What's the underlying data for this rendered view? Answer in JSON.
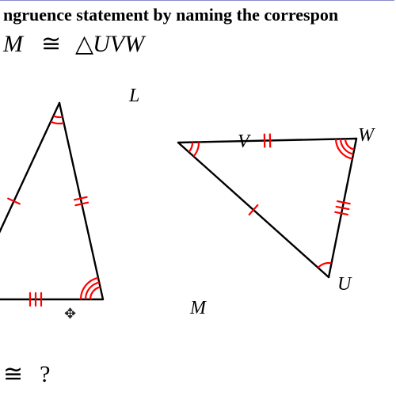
{
  "header": {
    "line1": "ngruence statement by naming the correspon"
  },
  "statement": {
    "lhs_tri": "△",
    "lhs_name_tail": "M",
    "cong": "≅",
    "rhs_tri": "△",
    "rhs_name": "UVW"
  },
  "question": {
    "cong": "≅",
    "qmark": "?"
  },
  "labels": {
    "L": "L",
    "M": "M",
    "V": "V",
    "W": "W",
    "U": "U"
  },
  "geometry": {
    "colors": {
      "stroke": "#000000",
      "marks": "#ff0000",
      "background": "#ffffff"
    },
    "stroke_width": 2.4,
    "mark_stroke_width": 2.2,
    "triangle_left": {
      "type": "triangle-partial",
      "vertices": {
        "L": [
          75,
          30
        ],
        "M": [
          130,
          278
        ],
        "hiddenK": [
          -40,
          278
        ]
      },
      "visible_edges": [
        [
          "L",
          "M"
        ],
        [
          "L",
          "hiddenK"
        ],
        [
          "hiddenK",
          "M"
        ]
      ],
      "angle_arcs": {
        "L": {
          "radii": [
            18,
            26
          ],
          "count": 2
        },
        "M": {
          "radii": [
            16,
            22,
            28
          ],
          "count": 3
        }
      },
      "tick_marks": {
        "LK": {
          "count": 1
        },
        "LM": {
          "count": 2
        },
        "KM": {
          "count": 3
        }
      }
    },
    "triangle_right": {
      "type": "triangle",
      "vertices": {
        "V": [
          225,
          80
        ],
        "W": [
          450,
          75
        ],
        "U": [
          415,
          250
        ]
      },
      "angle_arcs": {
        "V": {
          "radii": [
            18,
            26
          ],
          "count": 2
        },
        "W": {
          "radii": [
            14,
            20,
            26
          ],
          "count": 3
        },
        "U": {
          "radii": [
            18
          ],
          "count": 1
        }
      },
      "tick_marks": {
        "VW": {
          "count": 2
        },
        "WU": {
          "count": 3
        },
        "UV": {
          "count": 1
        }
      }
    }
  }
}
